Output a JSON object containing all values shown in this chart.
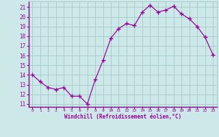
{
  "x": [
    0,
    1,
    2,
    3,
    4,
    5,
    6,
    7,
    8,
    9,
    10,
    11,
    12,
    13,
    14,
    15,
    16,
    17,
    18,
    19,
    20,
    21,
    22,
    23
  ],
  "y": [
    14.0,
    13.3,
    12.7,
    12.5,
    12.7,
    11.8,
    11.8,
    11.0,
    13.5,
    15.5,
    17.8,
    18.8,
    19.3,
    19.1,
    20.5,
    21.2,
    20.5,
    20.7,
    21.1,
    20.3,
    19.8,
    19.0,
    17.9,
    16.1
  ],
  "xlabel": "Windchill (Refroidissement éolien,°C)",
  "yticks": [
    11,
    12,
    13,
    14,
    15,
    16,
    17,
    18,
    19,
    20,
    21
  ],
  "xtick_labels": [
    "0",
    "1",
    "2",
    "3",
    "4",
    "5",
    "6",
    "7",
    "8",
    "9",
    "10",
    "11",
    "12",
    "13",
    "14",
    "15",
    "16",
    "17",
    "18",
    "19",
    "20",
    "21",
    "22",
    "23"
  ],
  "line_color": "#990099",
  "marker": "+",
  "bg_color": "#cce8e8",
  "grid_color": "#aacccc",
  "tick_color": "#990099",
  "label_color": "#990099",
  "font_family": "monospace"
}
